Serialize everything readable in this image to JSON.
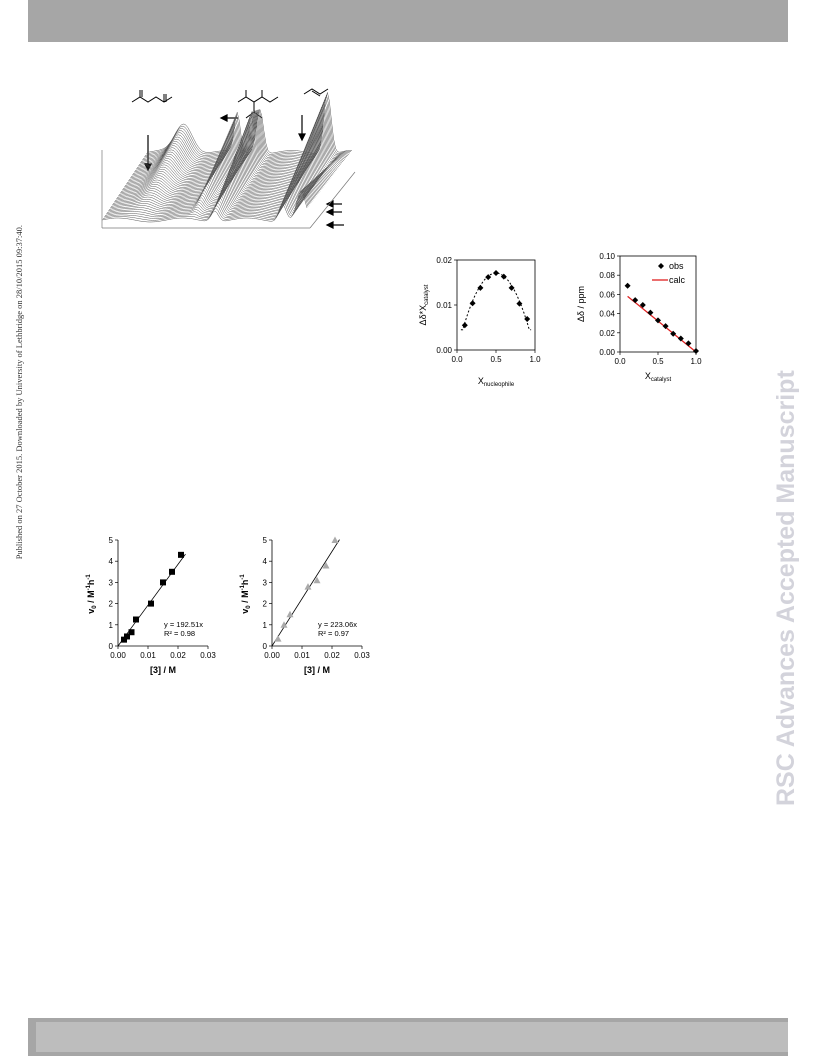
{
  "side_note": "Published on 27 October 2015. Downloaded by University of Lethbridge on 28/10/2015 09:37:40.",
  "watermark": "RSC Advances Accepted Manuscript",
  "chart_data": [
    {
      "type": "scatter",
      "id": "job-plot",
      "ylabel": "Δδ*X",
      "ylabel_sub": "catalyst",
      "xlabel": "X",
      "xlabel_sub": "nucleophile",
      "xlim": [
        0.0,
        1.0
      ],
      "ylim": [
        0.0,
        0.02
      ],
      "xticks": [
        "0.0",
        "0.5",
        "1.0"
      ],
      "yticks": [
        "0.00",
        "0.01",
        "0.02"
      ],
      "x": [
        0.1,
        0.2,
        0.3,
        0.4,
        0.5,
        0.6,
        0.7,
        0.8,
        0.9
      ],
      "values": [
        0.0055,
        0.0104,
        0.0138,
        0.0162,
        0.0171,
        0.0163,
        0.0138,
        0.0103,
        0.0069
      ]
    },
    {
      "type": "scatter",
      "id": "shift-plot",
      "ylabel": "Δδ / ppm",
      "xlabel": "X",
      "xlabel_sub": "catalyst",
      "xlim": [
        0.0,
        1.0
      ],
      "ylim": [
        0.0,
        0.1
      ],
      "xticks": [
        "0.0",
        "0.5",
        "1.0"
      ],
      "yticks": [
        "0.00",
        "0.02",
        "0.04",
        "0.06",
        "0.08",
        "0.10"
      ],
      "series": [
        {
          "name": "obs",
          "x": [
            0.1,
            0.2,
            0.3,
            0.4,
            0.5,
            0.6,
            0.7,
            0.8,
            0.9,
            1.0
          ],
          "values": [
            0.069,
            0.054,
            0.049,
            0.041,
            0.033,
            0.027,
            0.019,
            0.014,
            0.009,
            0.001
          ]
        },
        {
          "name": "calc",
          "x": [
            0.1,
            1.0
          ],
          "values": [
            0.058,
            0.0
          ],
          "color": "#e02020"
        }
      ]
    },
    {
      "type": "scatter",
      "id": "rate-plot-1",
      "ylabel": "v",
      "ylabel_sub": "0",
      "ylabel_tail": "/ M",
      "ylabel_sup": "-1",
      "ylabel_end": "h",
      "ylabel_sup2": "-1",
      "xlabel": "[3] / M",
      "xlim": [
        0.0,
        0.03
      ],
      "ylim": [
        0,
        5
      ],
      "xticks": [
        "0.00",
        "0.01",
        "0.02",
        "0.03"
      ],
      "yticks": [
        "0",
        "1",
        "2",
        "3",
        "4",
        "5"
      ],
      "x": [
        0.002,
        0.003,
        0.0045,
        0.006,
        0.011,
        0.015,
        0.018,
        0.021
      ],
      "values": [
        0.3,
        0.45,
        0.65,
        1.25,
        2.0,
        3.0,
        3.5,
        4.3
      ],
      "fit": {
        "equation": "y = 192.51x",
        "r2": "R² = 0.98",
        "slope": 192.51
      }
    },
    {
      "type": "scatter",
      "id": "rate-plot-2",
      "ylabel": "v",
      "ylabel_sub": "0",
      "ylabel_tail": "/ M",
      "ylabel_sup": "-1",
      "ylabel_end": "h",
      "ylabel_sup2": "-1",
      "xlabel": "[3] / M",
      "xlim": [
        0.0,
        0.03
      ],
      "ylim": [
        0,
        5
      ],
      "xticks": [
        "0.00",
        "0.01",
        "0.02",
        "0.03"
      ],
      "yticks": [
        "0",
        "1",
        "2",
        "3",
        "4",
        "5"
      ],
      "x": [
        0.002,
        0.004,
        0.006,
        0.012,
        0.015,
        0.018,
        0.021
      ],
      "values": [
        0.35,
        1.0,
        1.5,
        2.8,
        3.1,
        3.8,
        5.0
      ],
      "fit": {
        "equation": "y = 223.06x",
        "r2": "R² = 0.97",
        "slope": 223.06
      }
    }
  ]
}
